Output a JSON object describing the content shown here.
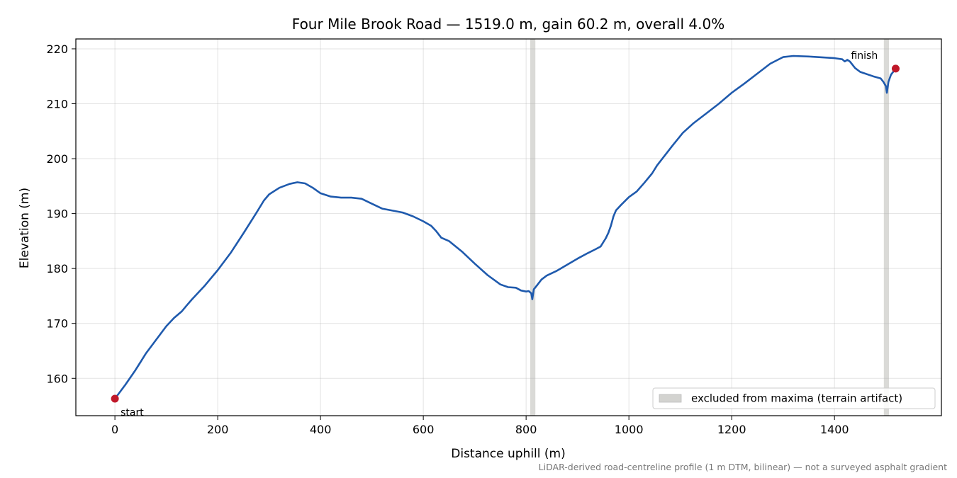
{
  "chart_data": {
    "type": "line",
    "title": "Four Mile Brook Road — 1519.0 m, gain 60.2 m, overall 4.0%",
    "xlabel": "Distance uphill (m)",
    "ylabel": "Elevation (m)",
    "xlim": [
      -76,
      1608
    ],
    "ylim": [
      153.2,
      221.8
    ],
    "x_ticks": [
      0,
      200,
      400,
      600,
      800,
      1000,
      1200,
      1400
    ],
    "y_ticks": [
      160,
      170,
      180,
      190,
      200,
      210,
      220
    ],
    "grid": true,
    "legend_placement": "lower-right",
    "colors": {
      "line": "#1f5aad",
      "endpoint": "#c0182a",
      "band": "#d3d3d0"
    },
    "series": [
      {
        "x": [
          0,
          20,
          40,
          50,
          60,
          80,
          100,
          115,
          130,
          140,
          150,
          175,
          200,
          225,
          250,
          275,
          290,
          300,
          320,
          340,
          355,
          370,
          385,
          400,
          420,
          440,
          460,
          480,
          500,
          520,
          560,
          580,
          600,
          615,
          625,
          635,
          650,
          675,
          700,
          725,
          750,
          765,
          780,
          790,
          800,
          805,
          810,
          812,
          815,
          820,
          830,
          840,
          860,
          880,
          900,
          920,
          935,
          945,
          955,
          960,
          965,
          970,
          975,
          985,
          1000,
          1015,
          1030,
          1045,
          1055,
          1065,
          1085,
          1105,
          1125,
          1150,
          1175,
          1200,
          1225,
          1250,
          1275,
          1300,
          1320,
          1350,
          1400,
          1415,
          1420,
          1425,
          1430,
          1440,
          1450,
          1475,
          1490,
          1495,
          1500,
          1502,
          1505,
          1510,
          1519
        ],
        "y": [
          156.3,
          158.8,
          161.5,
          163.0,
          164.5,
          167.0,
          169.5,
          171.0,
          172.2,
          173.3,
          174.4,
          176.9,
          179.7,
          182.8,
          186.4,
          190.1,
          192.4,
          193.5,
          194.7,
          195.4,
          195.7,
          195.5,
          194.7,
          193.7,
          193.1,
          192.9,
          192.9,
          192.7,
          191.8,
          190.9,
          190.2,
          189.5,
          188.6,
          187.8,
          186.8,
          185.6,
          185.0,
          183.1,
          180.9,
          178.8,
          177.1,
          176.6,
          176.5,
          176.0,
          175.8,
          175.9,
          175.5,
          174.4,
          176.2,
          176.8,
          178.0,
          178.7,
          179.6,
          180.7,
          181.8,
          182.8,
          183.5,
          184.0,
          185.5,
          186.5,
          187.8,
          189.5,
          190.6,
          191.6,
          193.0,
          194.0,
          195.6,
          197.3,
          198.8,
          200.0,
          202.4,
          204.7,
          206.4,
          208.2,
          210.0,
          212.0,
          213.7,
          215.5,
          217.3,
          218.5,
          218.7,
          218.6,
          218.3,
          218.1,
          217.7,
          218.0,
          217.7,
          216.5,
          215.8,
          215.0,
          214.6,
          214.0,
          213.2,
          212.0,
          214.0,
          215.3,
          216.4
        ]
      }
    ],
    "endpoints": {
      "start": {
        "x": 0,
        "y": 156.3,
        "label": "start"
      },
      "finish": {
        "x": 1519,
        "y": 216.4,
        "label": "finish"
      }
    },
    "excluded_bands": [
      {
        "x0": 808,
        "x1": 818
      },
      {
        "x0": 1496,
        "x1": 1506
      }
    ],
    "legend": {
      "band_label": "excluded from maxima (terrain artifact)"
    },
    "footnote": "LiDAR-derived road-centreline profile (1 m DTM, bilinear) — not a surveyed asphalt gradient"
  }
}
